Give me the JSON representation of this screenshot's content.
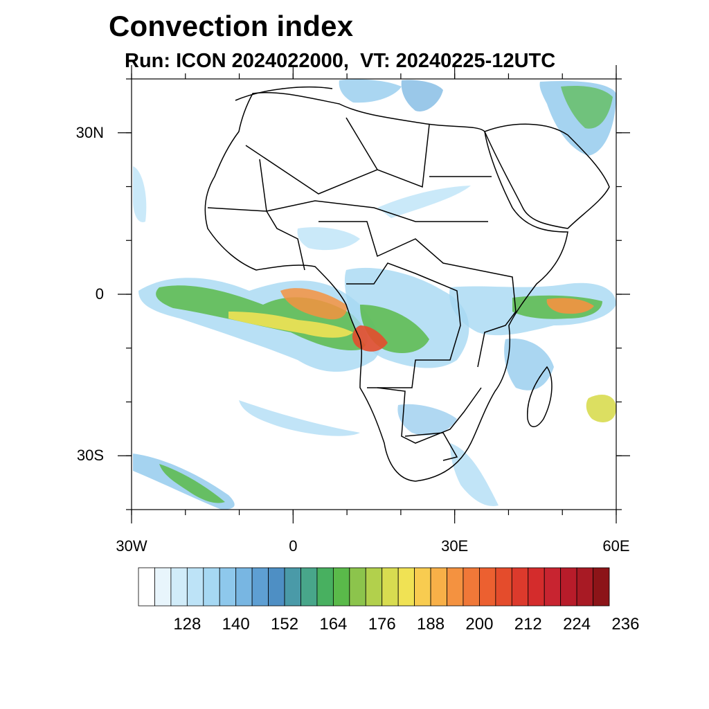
{
  "title": "Convection index",
  "subtitle": "Run: ICON 2024022000,  VT: 20240225-12UTC",
  "map": {
    "lon_range": [
      -30,
      60
    ],
    "lat_range": [
      -40,
      40
    ],
    "lat_ticks": [
      {
        "lat": 30,
        "label": "30N"
      },
      {
        "lat": 0,
        "label": "0"
      },
      {
        "lat": -30,
        "label": "30S"
      }
    ],
    "lon_ticks": [
      {
        "lon": -30,
        "label": "30W"
      },
      {
        "lon": 0,
        "label": "0"
      },
      {
        "lon": 30,
        "label": "30E"
      },
      {
        "lon": 60,
        "label": "60E"
      }
    ],
    "minor_ticks_deg": 10
  },
  "colorbar": {
    "colors": [
      "#ffffff",
      "#e8f5fc",
      "#d1ecf9",
      "#bde3f7",
      "#a6d8f3",
      "#8ec8ec",
      "#78b6e2",
      "#5e9fd3",
      "#4e8fc4",
      "#4a9aa8",
      "#48a68a",
      "#48b060",
      "#5aba4a",
      "#8cc44c",
      "#b2d04c",
      "#d8dc50",
      "#f0e254",
      "#f8cc50",
      "#f8b048",
      "#f49240",
      "#f07838",
      "#ec6030",
      "#e44c2c",
      "#dc3a2c",
      "#d42c2c",
      "#c82430",
      "#b81c2a",
      "#a81a24",
      "#8c1418"
    ],
    "labels": [
      "128",
      "140",
      "152",
      "164",
      "176",
      "188",
      "200",
      "212",
      "224",
      "236"
    ]
  }
}
